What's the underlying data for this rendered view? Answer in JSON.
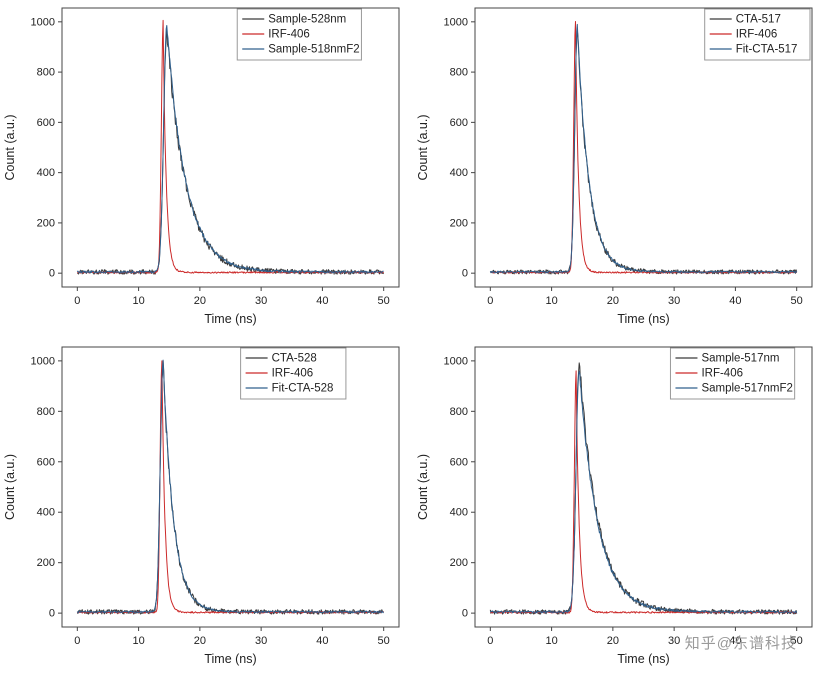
{
  "watermark": "知乎@东谱科技",
  "colors": {
    "frame": "#444444",
    "text": "#222222",
    "legend_border": "#999999",
    "background": "#ffffff"
  },
  "chart_data": [
    {
      "type": "line",
      "title": "",
      "xlabel": "Time (ns)",
      "ylabel": "Count (a.u.)",
      "xlim": [
        -2.5,
        52.5
      ],
      "ylim": [
        -55,
        1055
      ],
      "xticks": [
        0,
        10,
        20,
        30,
        40,
        50
      ],
      "yticks": [
        0,
        200,
        400,
        600,
        800,
        1000
      ],
      "grid": false,
      "legend_position": "top-inside",
      "legend_x": 0.52,
      "series": [
        {
          "name": "Sample-528nm",
          "color": "#3a3a3a",
          "model": {
            "t0": 14.6,
            "rise": 0.5,
            "tau": 3.1,
            "peak": 960,
            "base": 5,
            "noise": 30,
            "seed": 11
          }
        },
        {
          "name": "IRF-406",
          "color": "#cc2a2a",
          "model": {
            "t0": 14.0,
            "rise": 0.28,
            "tau": 0.5,
            "peak": 1000,
            "base": 3,
            "noise": 10,
            "seed": 12
          }
        },
        {
          "name": "Sample-518nmF2",
          "color": "#31618e",
          "model": {
            "t0": 14.6,
            "rise": 0.5,
            "tau": 3.1,
            "peak": 985,
            "base": 5,
            "noise": 13,
            "seed": 13
          }
        }
      ]
    },
    {
      "type": "line",
      "title": "",
      "xlabel": "Time (ns)",
      "ylabel": "Count (a.u.)",
      "xlim": [
        -2.5,
        52.5
      ],
      "ylim": [
        -55,
        1055
      ],
      "xticks": [
        0,
        10,
        20,
        30,
        40,
        50
      ],
      "yticks": [
        0,
        200,
        400,
        600,
        800,
        1000
      ],
      "grid": false,
      "legend_position": "top-inside",
      "legend_x": 0.75,
      "series": [
        {
          "name": "CTA-517",
          "color": "#3a3a3a",
          "model": {
            "t0": 14.2,
            "rise": 0.42,
            "tau": 1.9,
            "peak": 965,
            "base": 5,
            "noise": 28,
            "seed": 21
          }
        },
        {
          "name": "IRF-406",
          "color": "#cc2a2a",
          "model": {
            "t0": 13.9,
            "rise": 0.28,
            "tau": 0.5,
            "peak": 1000,
            "base": 3,
            "noise": 10,
            "seed": 22
          }
        },
        {
          "name": "Fit-CTA-517",
          "color": "#31618e",
          "model": {
            "t0": 14.2,
            "rise": 0.42,
            "tau": 1.9,
            "peak": 985,
            "base": 5,
            "noise": 11,
            "seed": 23
          }
        }
      ]
    },
    {
      "type": "line",
      "title": "",
      "xlabel": "Time (ns)",
      "ylabel": "Count (a.u.)",
      "xlim": [
        -2.5,
        52.5
      ],
      "ylim": [
        -55,
        1055
      ],
      "xticks": [
        0,
        10,
        20,
        30,
        40,
        50
      ],
      "yticks": [
        0,
        200,
        400,
        600,
        800,
        1000
      ],
      "grid": false,
      "legend_position": "top-inside",
      "legend_x": 0.53,
      "series": [
        {
          "name": "CTA-528",
          "color": "#3a3a3a",
          "model": {
            "t0": 14.0,
            "rise": 0.45,
            "tau": 1.7,
            "peak": 990,
            "base": 5,
            "noise": 30,
            "seed": 31
          }
        },
        {
          "name": "IRF-406",
          "color": "#cc2a2a",
          "model": {
            "t0": 13.8,
            "rise": 0.28,
            "tau": 0.5,
            "peak": 1000,
            "base": 3,
            "noise": 10,
            "seed": 32
          }
        },
        {
          "name": "Fit-CTA-528",
          "color": "#31618e",
          "model": {
            "t0": 14.0,
            "rise": 0.45,
            "tau": 1.7,
            "peak": 1000,
            "base": 5,
            "noise": 11,
            "seed": 33
          }
        }
      ]
    },
    {
      "type": "line",
      "title": "",
      "xlabel": "Time (ns)",
      "ylabel": "Count (a.u.)",
      "xlim": [
        -2.5,
        52.5
      ],
      "ylim": [
        -55,
        1055
      ],
      "xticks": [
        0,
        10,
        20,
        30,
        40,
        50
      ],
      "yticks": [
        0,
        200,
        400,
        600,
        800,
        1000
      ],
      "grid": false,
      "legend_position": "top-inside",
      "legend_x": 0.58,
      "series": [
        {
          "name": "Sample-517nm",
          "color": "#3a3a3a",
          "model": {
            "t0": 14.5,
            "rise": 0.5,
            "tau": 3.0,
            "peak": 1000,
            "base": 5,
            "noise": 30,
            "seed": 41
          }
        },
        {
          "name": "IRF-406",
          "color": "#cc2a2a",
          "model": {
            "t0": 14.0,
            "rise": 0.28,
            "tau": 0.5,
            "peak": 950,
            "base": 3,
            "noise": 10,
            "seed": 42
          }
        },
        {
          "name": "Sample-517nmF2",
          "color": "#31618e",
          "model": {
            "t0": 14.5,
            "rise": 0.5,
            "tau": 3.0,
            "peak": 965,
            "base": 5,
            "noise": 13,
            "seed": 43
          }
        }
      ]
    }
  ]
}
